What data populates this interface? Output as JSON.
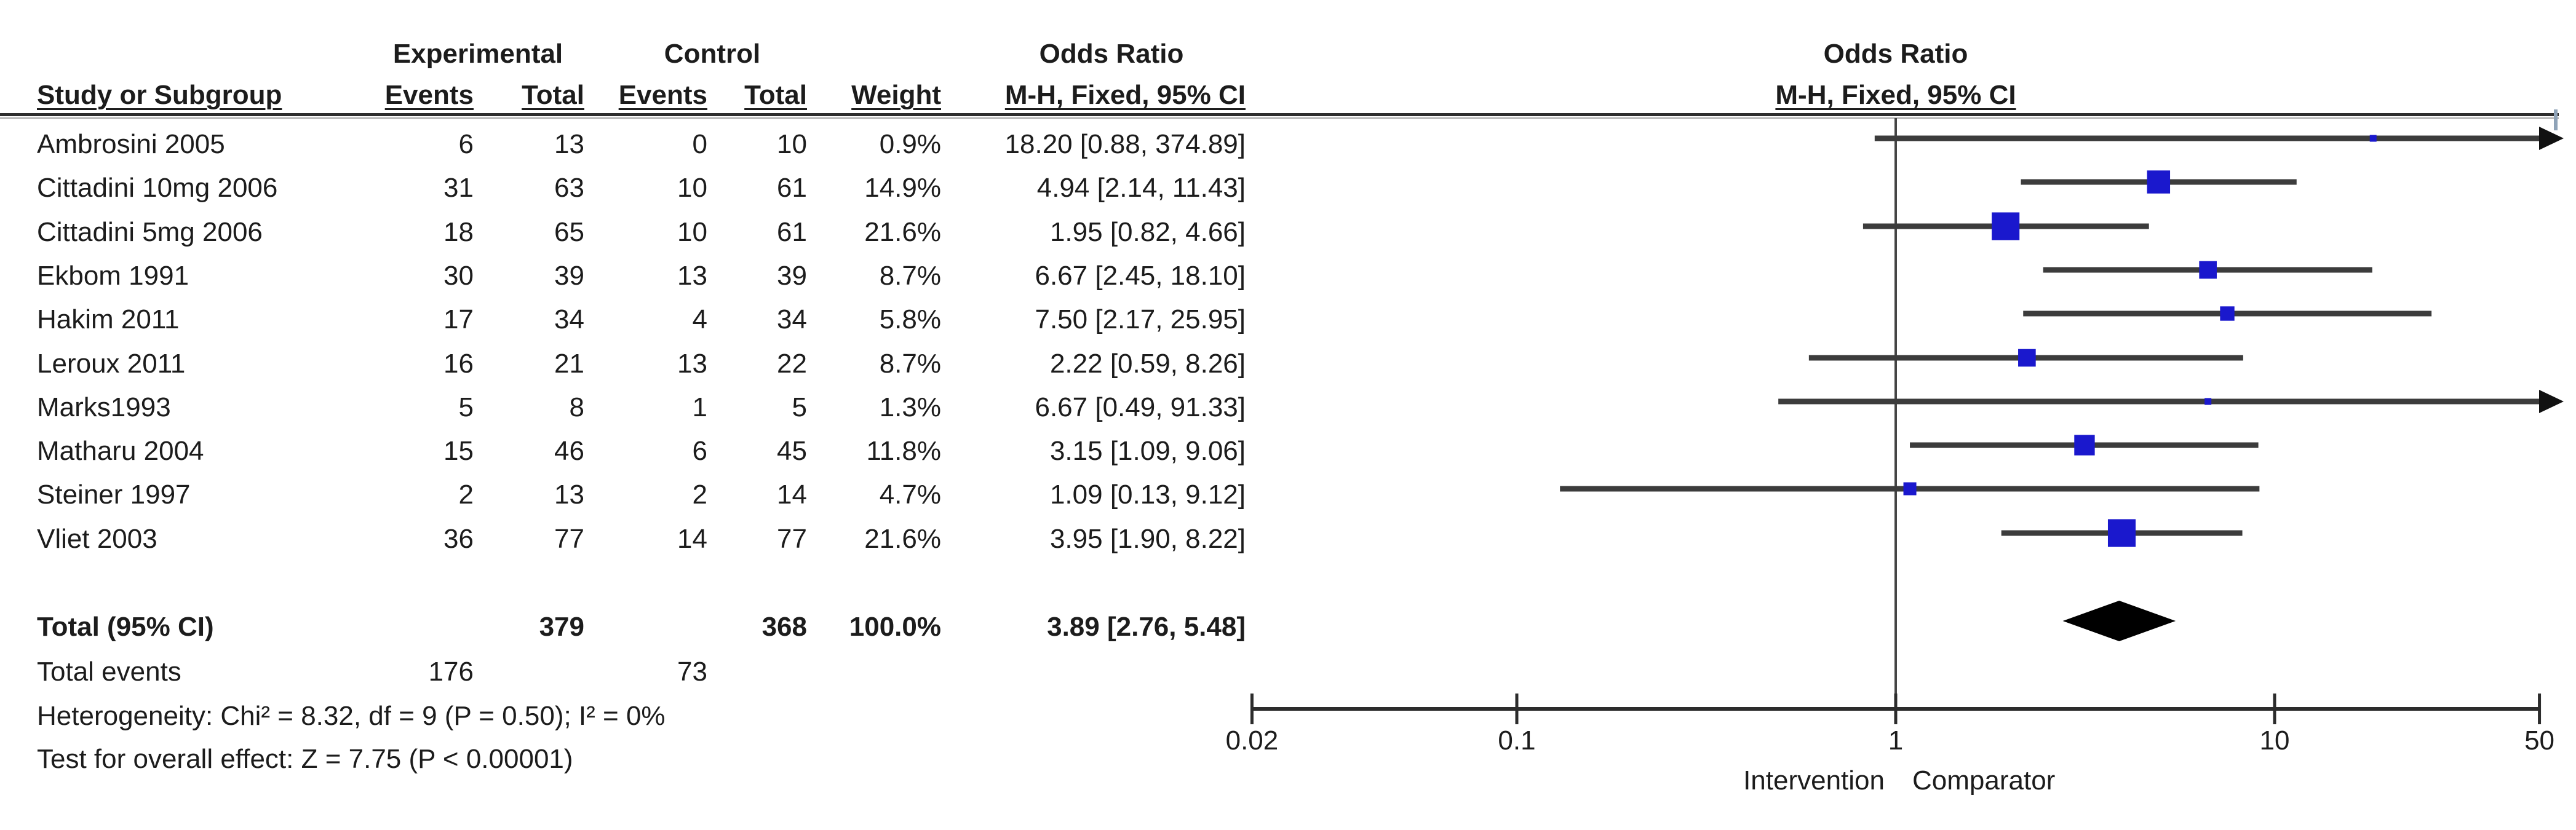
{
  "table_header": {
    "group_experimental": "Experimental",
    "group_control": "Control",
    "group_odds_ratio": "Odds Ratio",
    "study": "Study or Subgroup",
    "events": "Events",
    "total": "Total",
    "weight": "Weight",
    "mh_fixed": "M-H, Fixed, 95% CI"
  },
  "plot_header": {
    "line1": "Odds Ratio",
    "line2": "M-H, Fixed, 95% CI"
  },
  "chart_data": {
    "type": "forest",
    "effect_measure": "Odds Ratio",
    "method": "M-H, Fixed, 95% CI",
    "x_scale": "log",
    "x_range": [
      0.02,
      50
    ],
    "studies": [
      {
        "name": "Ambrosini 2005",
        "exp_events": 6,
        "exp_total": 13,
        "ctrl_events": 0,
        "ctrl_total": 10,
        "weight": "0.9%",
        "weight_pct": 0.9,
        "or": 18.2,
        "ci_low": 0.88,
        "ci_high": 374.89,
        "estimate_label": "18.20 [0.88, 374.89]"
      },
      {
        "name": "Cittadini 10mg 2006",
        "exp_events": 31,
        "exp_total": 63,
        "ctrl_events": 10,
        "ctrl_total": 61,
        "weight": "14.9%",
        "weight_pct": 14.9,
        "or": 4.94,
        "ci_low": 2.14,
        "ci_high": 11.43,
        "estimate_label": "4.94 [2.14, 11.43]"
      },
      {
        "name": "Cittadini 5mg 2006",
        "exp_events": 18,
        "exp_total": 65,
        "ctrl_events": 10,
        "ctrl_total": 61,
        "weight": "21.6%",
        "weight_pct": 21.6,
        "or": 1.95,
        "ci_low": 0.82,
        "ci_high": 4.66,
        "estimate_label": "1.95 [0.82, 4.66]"
      },
      {
        "name": "Ekbom 1991",
        "exp_events": 30,
        "exp_total": 39,
        "ctrl_events": 13,
        "ctrl_total": 39,
        "weight": "8.7%",
        "weight_pct": 8.7,
        "or": 6.67,
        "ci_low": 2.45,
        "ci_high": 18.1,
        "estimate_label": "6.67 [2.45, 18.10]"
      },
      {
        "name": "Hakim 2011",
        "exp_events": 17,
        "exp_total": 34,
        "ctrl_events": 4,
        "ctrl_total": 34,
        "weight": "5.8%",
        "weight_pct": 5.8,
        "or": 7.5,
        "ci_low": 2.17,
        "ci_high": 25.95,
        "estimate_label": "7.50 [2.17, 25.95]"
      },
      {
        "name": "Leroux 2011",
        "exp_events": 16,
        "exp_total": 21,
        "ctrl_events": 13,
        "ctrl_total": 22,
        "weight": "8.7%",
        "weight_pct": 8.7,
        "or": 2.22,
        "ci_low": 0.59,
        "ci_high": 8.26,
        "estimate_label": "2.22 [0.59, 8.26]"
      },
      {
        "name": "Marks1993",
        "exp_events": 5,
        "exp_total": 8,
        "ctrl_events": 1,
        "ctrl_total": 5,
        "weight": "1.3%",
        "weight_pct": 1.3,
        "or": 6.67,
        "ci_low": 0.49,
        "ci_high": 91.33,
        "estimate_label": "6.67 [0.49, 91.33]"
      },
      {
        "name": "Matharu 2004",
        "exp_events": 15,
        "exp_total": 46,
        "ctrl_events": 6,
        "ctrl_total": 45,
        "weight": "11.8%",
        "weight_pct": 11.8,
        "or": 3.15,
        "ci_low": 1.09,
        "ci_high": 9.06,
        "estimate_label": "3.15 [1.09, 9.06]"
      },
      {
        "name": "Steiner 1997",
        "exp_events": 2,
        "exp_total": 13,
        "ctrl_events": 2,
        "ctrl_total": 14,
        "weight": "4.7%",
        "weight_pct": 4.7,
        "or": 1.09,
        "ci_low": 0.13,
        "ci_high": 9.12,
        "estimate_label": "1.09 [0.13, 9.12]"
      },
      {
        "name": "Vliet 2003",
        "exp_events": 36,
        "exp_total": 77,
        "ctrl_events": 14,
        "ctrl_total": 77,
        "weight": "21.6%",
        "weight_pct": 21.6,
        "or": 3.95,
        "ci_low": 1.9,
        "ci_high": 8.22,
        "estimate_label": "3.95 [1.90, 8.22]"
      }
    ],
    "total": {
      "label": "Total (95% CI)",
      "exp_total": 379,
      "ctrl_total": 368,
      "weight": "100.0%",
      "or": 3.89,
      "ci_low": 2.76,
      "ci_high": 5.48,
      "estimate_label": "3.89 [2.76, 5.48]"
    },
    "total_events": {
      "label": "Total events",
      "experimental": 176,
      "control": 73
    },
    "heterogeneity": "Heterogeneity: Chi² = 8.32, df = 9 (P = 0.50); I² = 0%",
    "overall_effect": "Test for overall effect: Z = 7.75 (P < 0.00001)",
    "axis": {
      "ticks": [
        0.02,
        0.1,
        1,
        10,
        50
      ],
      "tick_labels": [
        "0.02",
        "0.1",
        "1",
        "10",
        "50"
      ],
      "favours_left": "Intervention",
      "favours_right": "Comparator"
    },
    "colors": {
      "marker": "#1a18cd",
      "diamond": "#000000",
      "ci_line": "#3c3c3c",
      "axis": "#2c2c2c",
      "text": "#1c1c1c"
    }
  }
}
